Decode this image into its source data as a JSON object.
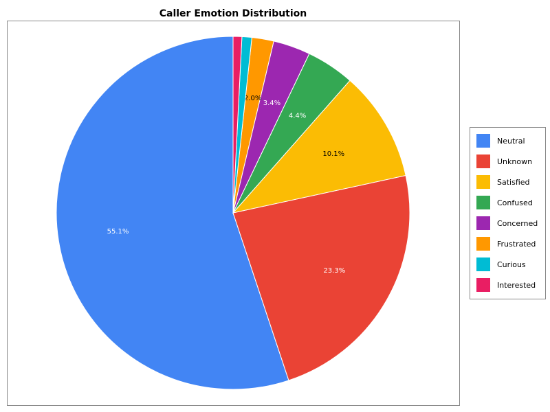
{
  "chart_data": {
    "type": "pie",
    "title": "Caller Emotion Distribution",
    "categories": [
      "Neutral",
      "Unknown",
      "Satisfied",
      "Confused",
      "Concerned",
      "Frustrated",
      "Curious",
      "Interested"
    ],
    "values": [
      55.1,
      23.3,
      10.1,
      4.4,
      3.4,
      2.0,
      0.9,
      0.8
    ],
    "value_labels": [
      "55.1%",
      "23.3%",
      "10.1%",
      "4.4%",
      "3.4%",
      "2.0%",
      null,
      null
    ],
    "colors": [
      "#4285f4",
      "#ea4335",
      "#fbbc04",
      "#34a853",
      "#9c27b0",
      "#ff9800",
      "#00bcd4",
      "#e91e63"
    ],
    "legend": "right"
  }
}
